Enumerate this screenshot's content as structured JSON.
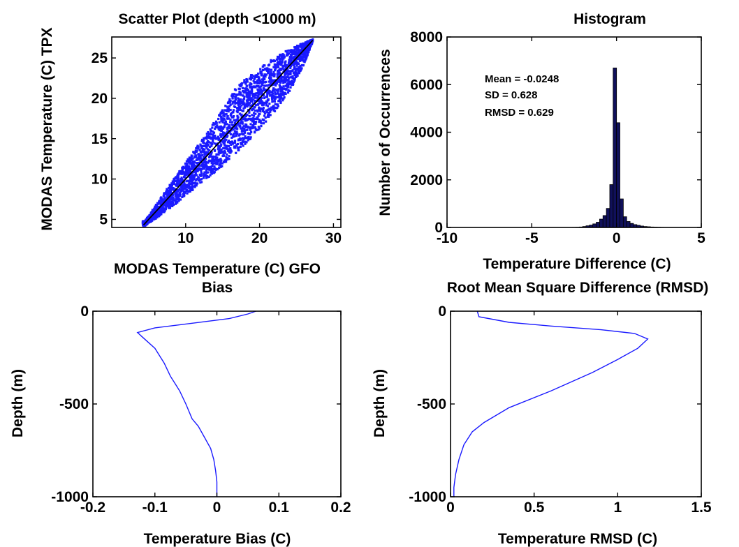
{
  "colors": {
    "data": "#1a1aff",
    "fit_line": "#000000",
    "axes": "#000000",
    "background": "#ffffff"
  },
  "chart_data": [
    {
      "id": "scatter",
      "type": "scatter",
      "title": "Scatter Plot (depth <1000 m)",
      "xlabel": "MODAS Temperature (C) GFO",
      "ylabel": "MODAS Temperature (C) TPX",
      "xlim": [
        0,
        31
      ],
      "ylim": [
        4,
        27.6
      ],
      "xticks": [
        10,
        20,
        30
      ],
      "yticks": [
        5,
        10,
        15,
        20,
        25
      ],
      "grid": false,
      "point_cloud": {
        "description": "dense cloud of points along the 1:1 line",
        "x_range": [
          4.2,
          27.2
        ],
        "upper_edge": [
          [
            4.5,
            4.8
          ],
          [
            8,
            9.5
          ],
          [
            12,
            14.6
          ],
          [
            15,
            18.6
          ],
          [
            17,
            21.6
          ],
          [
            20,
            23.8
          ],
          [
            23,
            25.6
          ],
          [
            26,
            26.9
          ],
          [
            27.2,
            27.3
          ]
        ],
        "lower_edge": [
          [
            4.5,
            4.2
          ],
          [
            8,
            6.4
          ],
          [
            11,
            8.7
          ],
          [
            14,
            10.8
          ],
          [
            16,
            12.5
          ],
          [
            19,
            15.2
          ],
          [
            22,
            18.3
          ],
          [
            24,
            20.8
          ],
          [
            26,
            24.2
          ],
          [
            27.2,
            27.0
          ]
        ]
      },
      "fit_line": {
        "x": [
          4.3,
          27.2
        ],
        "y": [
          4.3,
          27.2
        ]
      }
    },
    {
      "id": "histogram",
      "type": "bar",
      "title": "Histogram",
      "xlabel": "Temperature Difference (C)",
      "ylabel": "Number of Occurrences",
      "xlim": [
        -10,
        5
      ],
      "ylim": [
        0,
        8000
      ],
      "xticks": [
        -10,
        -5,
        0,
        5
      ],
      "yticks": [
        0,
        2000,
        4000,
        6000,
        8000
      ],
      "grid": false,
      "annotations": [
        "Mean = -0.0248",
        "SD = 0.628",
        "RMSD = 0.629"
      ],
      "bin_centers": [
        -2.5,
        -2.3,
        -2.1,
        -1.9,
        -1.7,
        -1.5,
        -1.3,
        -1.1,
        -0.9,
        -0.7,
        -0.5,
        -0.3,
        -0.1,
        0.1,
        0.3,
        0.5,
        0.7,
        0.9,
        1.1,
        1.3,
        1.5,
        1.7,
        1.9,
        2.1,
        2.3,
        2.5,
        2.7
      ],
      "bin_width": 0.2,
      "values": [
        5,
        10,
        20,
        40,
        70,
        100,
        150,
        220,
        350,
        500,
        800,
        1800,
        6700,
        4400,
        1200,
        450,
        250,
        170,
        120,
        90,
        60,
        40,
        30,
        20,
        15,
        10,
        5
      ]
    },
    {
      "id": "bias",
      "type": "line",
      "title": "Bias",
      "xlabel": "Temperature Bias (C)",
      "ylabel": "Depth (m)",
      "xlim": [
        -0.2,
        0.2
      ],
      "ylim": [
        -1000,
        0
      ],
      "xticks": [
        -0.2,
        -0.1,
        0,
        0.1,
        0.2
      ],
      "ytick_values": [
        0,
        -500,
        -1000
      ],
      "ytick_labels": [
        "0",
        "-500",
        "-1000"
      ],
      "grid": false,
      "series": [
        {
          "x": [
            0.063,
            0.05,
            0.02,
            -0.04,
            -0.1,
            -0.128,
            -0.12,
            -0.1,
            -0.085,
            -0.075,
            -0.06,
            -0.05,
            -0.04,
            -0.03,
            -0.02,
            -0.01,
            -0.005,
            -0.002,
            0,
            0,
            0
          ],
          "y": [
            0,
            -15,
            -40,
            -65,
            -90,
            -115,
            -140,
            -200,
            -280,
            -350,
            -430,
            -500,
            -580,
            -620,
            -680,
            -740,
            -800,
            -860,
            -920,
            -960,
            -1000
          ]
        }
      ]
    },
    {
      "id": "rmsd",
      "type": "line",
      "title": "Root Mean Square Difference (RMSD)",
      "xlabel": "Temperature RMSD (C)",
      "ylabel": "Depth (m)",
      "xlim": [
        0,
        1.5
      ],
      "ylim": [
        -1000,
        0
      ],
      "xticks": [
        0,
        0.5,
        1,
        1.5
      ],
      "xtick_labels": [
        "0",
        "0.5",
        "1",
        "1.5"
      ],
      "ytick_values": [
        0,
        -500,
        -1000
      ],
      "ytick_labels": [
        "0",
        "-500",
        "-1000"
      ],
      "grid": false,
      "series": [
        {
          "x": [
            0.16,
            0.17,
            0.35,
            0.6,
            0.9,
            1.1,
            1.18,
            1.12,
            1.0,
            0.85,
            0.6,
            0.35,
            0.2,
            0.13,
            0.08,
            0.05,
            0.03,
            0.02,
            0.02
          ],
          "y": [
            0,
            -30,
            -60,
            -80,
            -100,
            -120,
            -150,
            -200,
            -260,
            -330,
            -430,
            -520,
            -600,
            -650,
            -720,
            -800,
            -880,
            -950,
            -1000
          ]
        }
      ]
    }
  ]
}
